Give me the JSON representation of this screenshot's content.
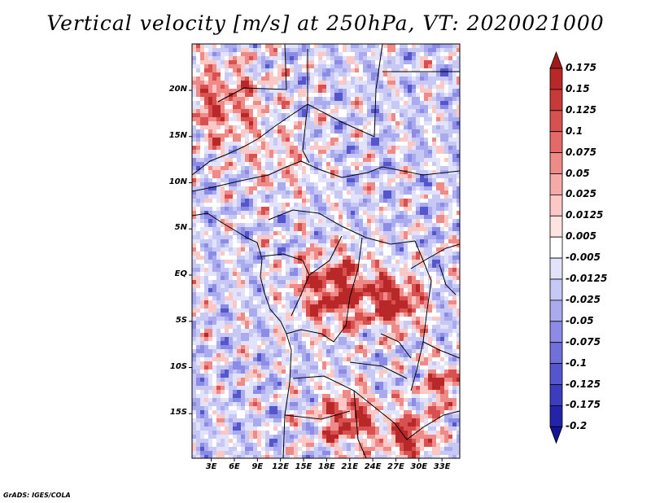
{
  "title": "Vertical velocity [m/s] at 250hPa, VT: 2020021000",
  "credit": "GrADS: IGES/COLA",
  "lat_labels": [
    "20N",
    "15N",
    "10N",
    "5N",
    "EQ",
    "5S",
    "10S",
    "15S"
  ],
  "lon_labels": [
    "3E",
    "6E",
    "9E",
    "12E",
    "15E",
    "18E",
    "21E",
    "24E",
    "27E",
    "30E",
    "33E"
  ],
  "colorbar": {
    "labels": [
      "0.175",
      "0.15",
      "0.125",
      "0.1",
      "0.075",
      "0.05",
      "0.025",
      "0.0125",
      "0.005",
      "-0.005",
      "-0.0125",
      "-0.025",
      "-0.05",
      "-0.075",
      "-0.1",
      "-0.125",
      "-0.175",
      "-0.2"
    ],
    "colors": [
      "#a01a1a",
      "#b82828",
      "#c83a3a",
      "#d85050",
      "#e46a6a",
      "#ee8a88",
      "#f5aaaa",
      "#fbc8c6",
      "#fde4e2",
      "#ffffff",
      "#e2e2fa",
      "#c8c8f4",
      "#aaaaee",
      "#8c8ce6",
      "#7070dc",
      "#5656cc",
      "#3c3cbe",
      "#2424aa",
      "#141496"
    ]
  }
}
